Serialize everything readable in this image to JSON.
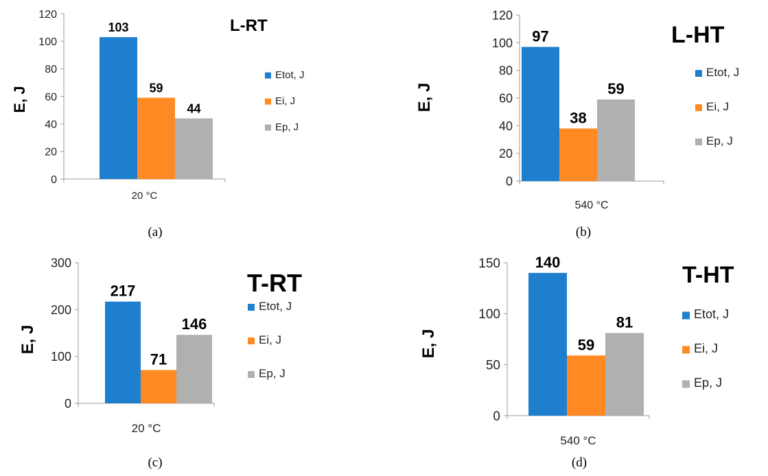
{
  "colors": {
    "Etot": "#1f7fcf",
    "Ei": "#ff8a24",
    "Ep": "#b0b0b0",
    "axis": "#999999",
    "text": "#000000"
  },
  "chart_data": [
    {
      "id": "a",
      "type": "bar",
      "title": "L-RT",
      "ylabel": "E, J",
      "categories": [
        "20 °C"
      ],
      "series": [
        {
          "name": "Etot, J",
          "values": [
            103
          ]
        },
        {
          "name": "Ei, J",
          "values": [
            59
          ]
        },
        {
          "name": "Ep, J",
          "values": [
            44
          ]
        }
      ],
      "ylim": [
        0,
        120
      ],
      "yticks": [
        0,
        20,
        40,
        60,
        80,
        100,
        120
      ],
      "legend": "right",
      "grid": false,
      "caption": "(a)"
    },
    {
      "id": "b",
      "type": "bar",
      "title": "L-HT",
      "ylabel": "E, J",
      "categories": [
        "540 °C"
      ],
      "series": [
        {
          "name": "Etot, J",
          "values": [
            97
          ]
        },
        {
          "name": "Ei, J",
          "values": [
            38
          ]
        },
        {
          "name": "Ep, J",
          "values": [
            59
          ]
        }
      ],
      "ylim": [
        0,
        120
      ],
      "yticks": [
        0,
        20,
        40,
        60,
        80,
        100,
        120
      ],
      "legend": "right",
      "grid": false,
      "caption": "(b)"
    },
    {
      "id": "c",
      "type": "bar",
      "title": "T-RT",
      "ylabel": "E, J",
      "categories": [
        "20 °C"
      ],
      "series": [
        {
          "name": "Etot, J",
          "values": [
            217
          ]
        },
        {
          "name": "Ei, J",
          "values": [
            71
          ]
        },
        {
          "name": "Ep, J",
          "values": [
            146
          ]
        }
      ],
      "ylim": [
        0,
        300
      ],
      "yticks": [
        0,
        100,
        200,
        300
      ],
      "legend": "right",
      "grid": false,
      "caption": "(c)"
    },
    {
      "id": "d",
      "type": "bar",
      "title": "T-HT",
      "ylabel": "E, J",
      "categories": [
        "540 °C"
      ],
      "series": [
        {
          "name": "Etot, J",
          "values": [
            140
          ]
        },
        {
          "name": "Ei, J",
          "values": [
            59
          ]
        },
        {
          "name": "Ep, J",
          "values": [
            81
          ]
        }
      ],
      "ylim": [
        0,
        150
      ],
      "yticks": [
        0,
        50,
        100,
        150
      ],
      "legend": "right",
      "grid": false,
      "caption": "(d)"
    }
  ]
}
